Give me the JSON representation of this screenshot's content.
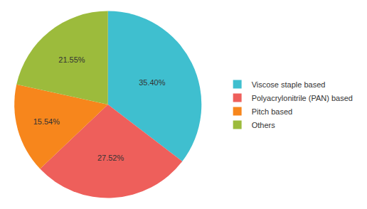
{
  "chart_data": {
    "type": "pie",
    "categories": [
      "Viscose staple based",
      "Polyacrylonitrile (PAN) based",
      "Pitch based",
      "Others"
    ],
    "values": [
      35.4,
      27.52,
      15.54,
      21.55
    ],
    "value_labels": [
      "35.40%",
      "27.52%",
      "15.54%",
      "21.55%"
    ],
    "colors": [
      "#3fbfcf",
      "#ee5f5b",
      "#f7861c",
      "#9cbb3c"
    ],
    "data_labels": true,
    "legend": "right"
  }
}
